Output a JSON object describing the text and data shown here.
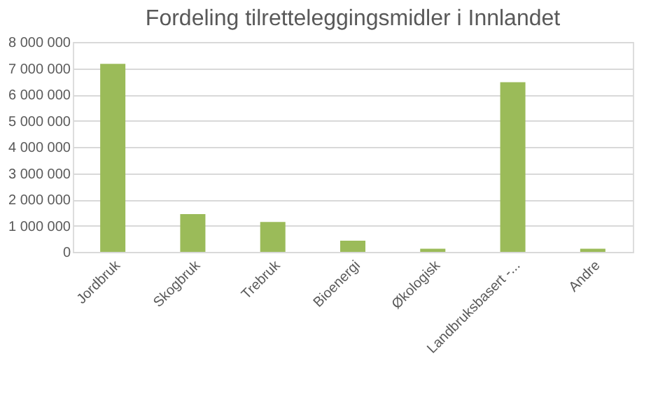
{
  "chart_data": {
    "type": "bar",
    "title": "Fordeling tilretteleggingsmidler i Innlandet",
    "categories": [
      "Jordbruk",
      "Skogbruk",
      "Trebruk",
      "Bioenergi",
      "Økologisk",
      "Landbruksbasert -...",
      "Andre"
    ],
    "values": [
      7170000,
      1440000,
      1140000,
      430000,
      120000,
      6470000,
      120000
    ],
    "color": "#9bbb59",
    "ylim": [
      0,
      8000000
    ],
    "yticks": [
      0,
      {
        "value": 1000000,
        "label": "1 000 000"
      },
      {
        "value": 2000000,
        "label": "2 000 000"
      },
      {
        "value": 3000000,
        "label": "3 000 000"
      },
      {
        "value": 4000000,
        "label": "4 000 000"
      },
      {
        "value": 5000000,
        "label": "5 000 000"
      },
      {
        "value": 6000000,
        "label": "6 000 000"
      },
      {
        "value": 7000000,
        "label": "7 000 000"
      },
      {
        "value": 8000000,
        "label": "8 000 000"
      }
    ],
    "grid": "y"
  }
}
